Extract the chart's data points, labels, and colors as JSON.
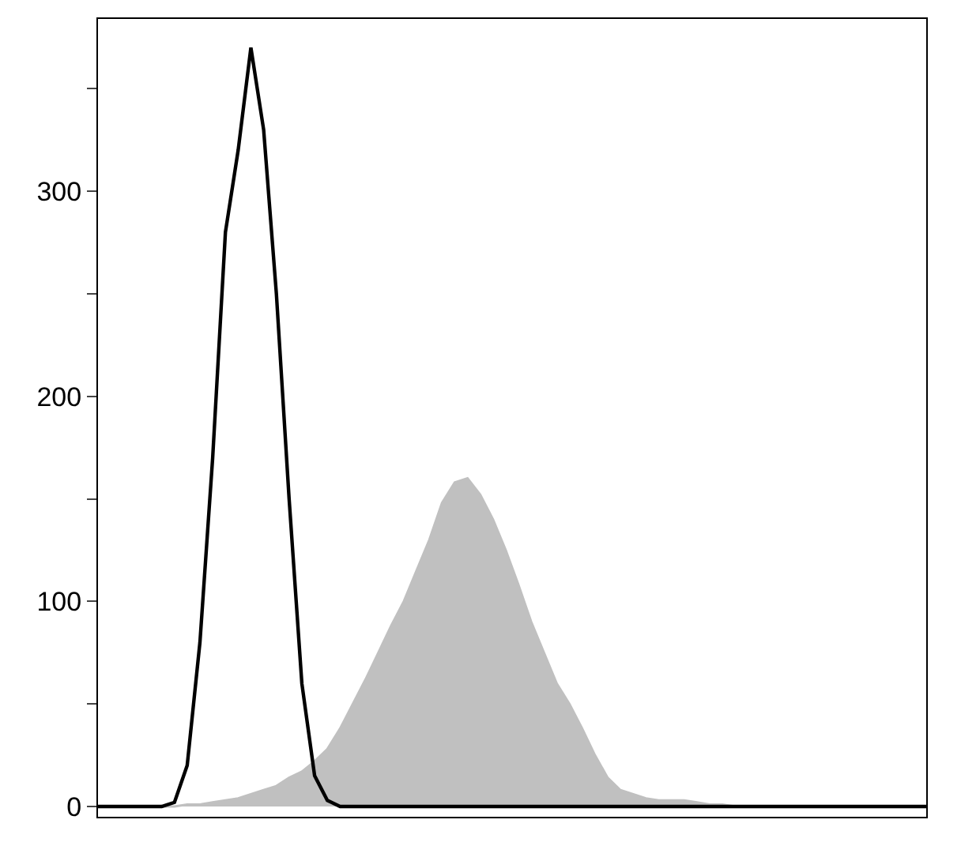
{
  "chart_data": {
    "type": "area",
    "categories": [
      null,
      null,
      null,
      null,
      null,
      null,
      null,
      null,
      null,
      null,
      null,
      null,
      null,
      null,
      null,
      null,
      null,
      null,
      null,
      null,
      null,
      null,
      null,
      null,
      null,
      null,
      null,
      null,
      null,
      null,
      null,
      null,
      null,
      null,
      null,
      null,
      null,
      null,
      null,
      null,
      null,
      null,
      null,
      null,
      null,
      null,
      null,
      null,
      null,
      null,
      null,
      null,
      null,
      null,
      null,
      null,
      null,
      null,
      null,
      null,
      null,
      null,
      null,
      null,
      null,
      null
    ],
    "series": [
      {
        "color": "#c0c0c0",
        "values": [
          0,
          0,
          0,
          0,
          0,
          0,
          0,
          1,
          1,
          2,
          3,
          4,
          6,
          8,
          10,
          14,
          17,
          22,
          28,
          38,
          50,
          62,
          75,
          88,
          100,
          115,
          130,
          148,
          158,
          160,
          152,
          140,
          125,
          108,
          90,
          75,
          60,
          50,
          38,
          25,
          14,
          8,
          6,
          4,
          3,
          3,
          3,
          2,
          1,
          1,
          0,
          0,
          0,
          0,
          0,
          0,
          0,
          0,
          0,
          0,
          0,
          0,
          0,
          0,
          0,
          0
        ]
      },
      {
        "type": "line",
        "color": "#000000",
        "values": [
          0,
          0,
          0,
          0,
          0,
          0,
          2,
          20,
          80,
          170,
          280,
          320,
          370,
          330,
          250,
          150,
          60,
          15,
          3,
          0,
          0,
          0,
          0,
          0,
          0,
          0,
          0,
          0,
          0,
          0,
          0,
          0,
          0,
          0,
          0,
          0,
          0,
          0,
          0,
          0,
          0,
          0,
          0,
          0,
          0,
          0,
          0,
          0,
          0,
          0,
          0,
          0,
          0,
          0,
          0,
          0,
          0,
          0,
          0,
          0,
          0,
          0,
          0,
          0,
          0,
          0
        ]
      }
    ],
    "ylim": [
      -5,
      384
    ],
    "yticks": [
      0,
      {
        "value": 50,
        "label": null
      },
      100,
      {
        "value": 150,
        "label": null
      },
      200,
      {
        "value": 250,
        "label": null
      },
      300,
      {
        "value": 350,
        "label": null
      }
    ],
    "tick_labels": "y"
  }
}
